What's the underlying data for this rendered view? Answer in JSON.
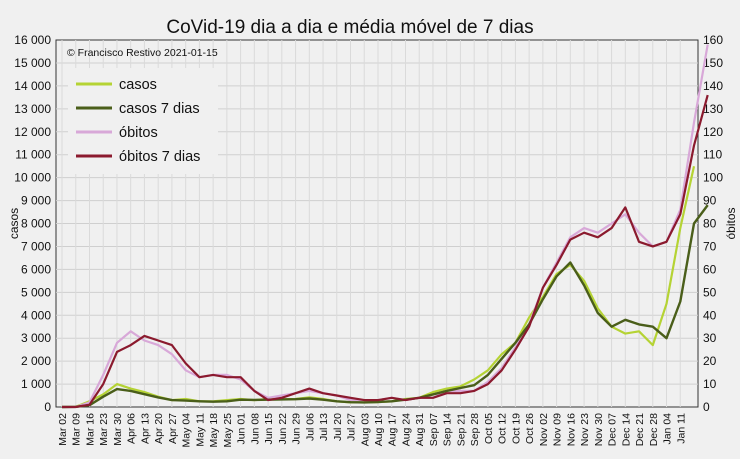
{
  "chart_data": {
    "type": "line",
    "title": "CoVid-19 dia a dia e média móvel de 7 dias",
    "copyright": "© Francisco Restivo 2021-01-15",
    "ylabel_left": "casos",
    "ylabel_right": "óbitos",
    "ylim_left": [
      0,
      16000
    ],
    "ylim_right": [
      0,
      160
    ],
    "y_ticks_left": [
      "0",
      "1 000",
      "2 000",
      "3 000",
      "4 000",
      "5 000",
      "6 000",
      "7 000",
      "8 000",
      "9 000",
      "10 000",
      "11 000",
      "12 000",
      "13 000",
      "14 000",
      "15 000",
      "16 000"
    ],
    "y_ticks_right": [
      "0",
      "10",
      "20",
      "30",
      "40",
      "50",
      "60",
      "70",
      "80",
      "90",
      "100",
      "110",
      "120",
      "130",
      "140",
      "150",
      "160"
    ],
    "x_ticks": [
      "Mar 02",
      "Mar 09",
      "Mar 16",
      "Mar 23",
      "Mar 30",
      "Apr 06",
      "Apr 13",
      "Apr 20",
      "Apr 27",
      "May 04",
      "May 11",
      "May 18",
      "May 25",
      "Jun 01",
      "Jun 08",
      "Jun 15",
      "Jun 22",
      "Jun 29",
      "Jul 06",
      "Jul 13",
      "Jul 20",
      "Jul 27",
      "Aug 03",
      "Aug 10",
      "Aug 17",
      "Aug 24",
      "Aug 31",
      "Sep 07",
      "Sep 14",
      "Sep 21",
      "Sep 28",
      "Oct 05",
      "Oct 12",
      "Oct 19",
      "Oct 26",
      "Nov 02",
      "Nov 09",
      "Nov 16",
      "Nov 23",
      "Nov 30",
      "Dec 07",
      "Dec 14",
      "Dec 21",
      "Dec 28",
      "Jan 04",
      "Jan 11"
    ],
    "x_unit": "week",
    "grid": true,
    "legend_position": "top-left",
    "series": [
      {
        "name": "casos",
        "axis": "left",
        "color": "#b5d334",
        "width": 2.2,
        "values": [
          0,
          10,
          250,
          550,
          1000,
          800,
          650,
          450,
          300,
          350,
          250,
          250,
          300,
          350,
          300,
          350,
          330,
          350,
          420,
          350,
          250,
          200,
          200,
          220,
          250,
          350,
          400,
          650,
          800,
          900,
          1200,
          1600,
          2300,
          2800,
          3900,
          4800,
          5800,
          6200,
          5500,
          4300,
          3500,
          3200,
          3300,
          2700,
          4500,
          7800,
          10500
        ]
      },
      {
        "name": "casos 7 dias",
        "axis": "left",
        "color": "#4a5e1a",
        "width": 2.4,
        "values": [
          0,
          10,
          80,
          450,
          780,
          700,
          560,
          420,
          300,
          280,
          250,
          230,
          250,
          320,
          310,
          320,
          330,
          340,
          370,
          320,
          250,
          210,
          200,
          220,
          250,
          320,
          400,
          550,
          700,
          830,
          950,
          1400,
          2100,
          2800,
          3600,
          4700,
          5700,
          6300,
          5300,
          4100,
          3500,
          3800,
          3600,
          3500,
          3000,
          4600,
          8000,
          8800
        ]
      },
      {
        "name": "óbitos",
        "axis": "right",
        "color": "#d8a8d8",
        "width": 2.2,
        "values": [
          0,
          0,
          2,
          14,
          28,
          33,
          29,
          27,
          23,
          16,
          13,
          14,
          14,
          12,
          7,
          4,
          5,
          6,
          7,
          6,
          5,
          3,
          3,
          3,
          4,
          3,
          4,
          4,
          7,
          7,
          7,
          11,
          17,
          26,
          36,
          52,
          63,
          74,
          78,
          76,
          80,
          84,
          76,
          70,
          72,
          86,
          124,
          158
        ]
      },
      {
        "name": "óbitos 7 dias",
        "axis": "right",
        "color": "#8b1a2e",
        "width": 2.2,
        "values": [
          0,
          0,
          1,
          10,
          24,
          27,
          31,
          29,
          27,
          19,
          13,
          14,
          13,
          13,
          7,
          3,
          4,
          6,
          8,
          6,
          5,
          4,
          3,
          3,
          4,
          3,
          4,
          4,
          6,
          6,
          7,
          10,
          16,
          25,
          35,
          52,
          62,
          73,
          76,
          74,
          78,
          87,
          72,
          70,
          72,
          84,
          114,
          136
        ]
      }
    ]
  }
}
